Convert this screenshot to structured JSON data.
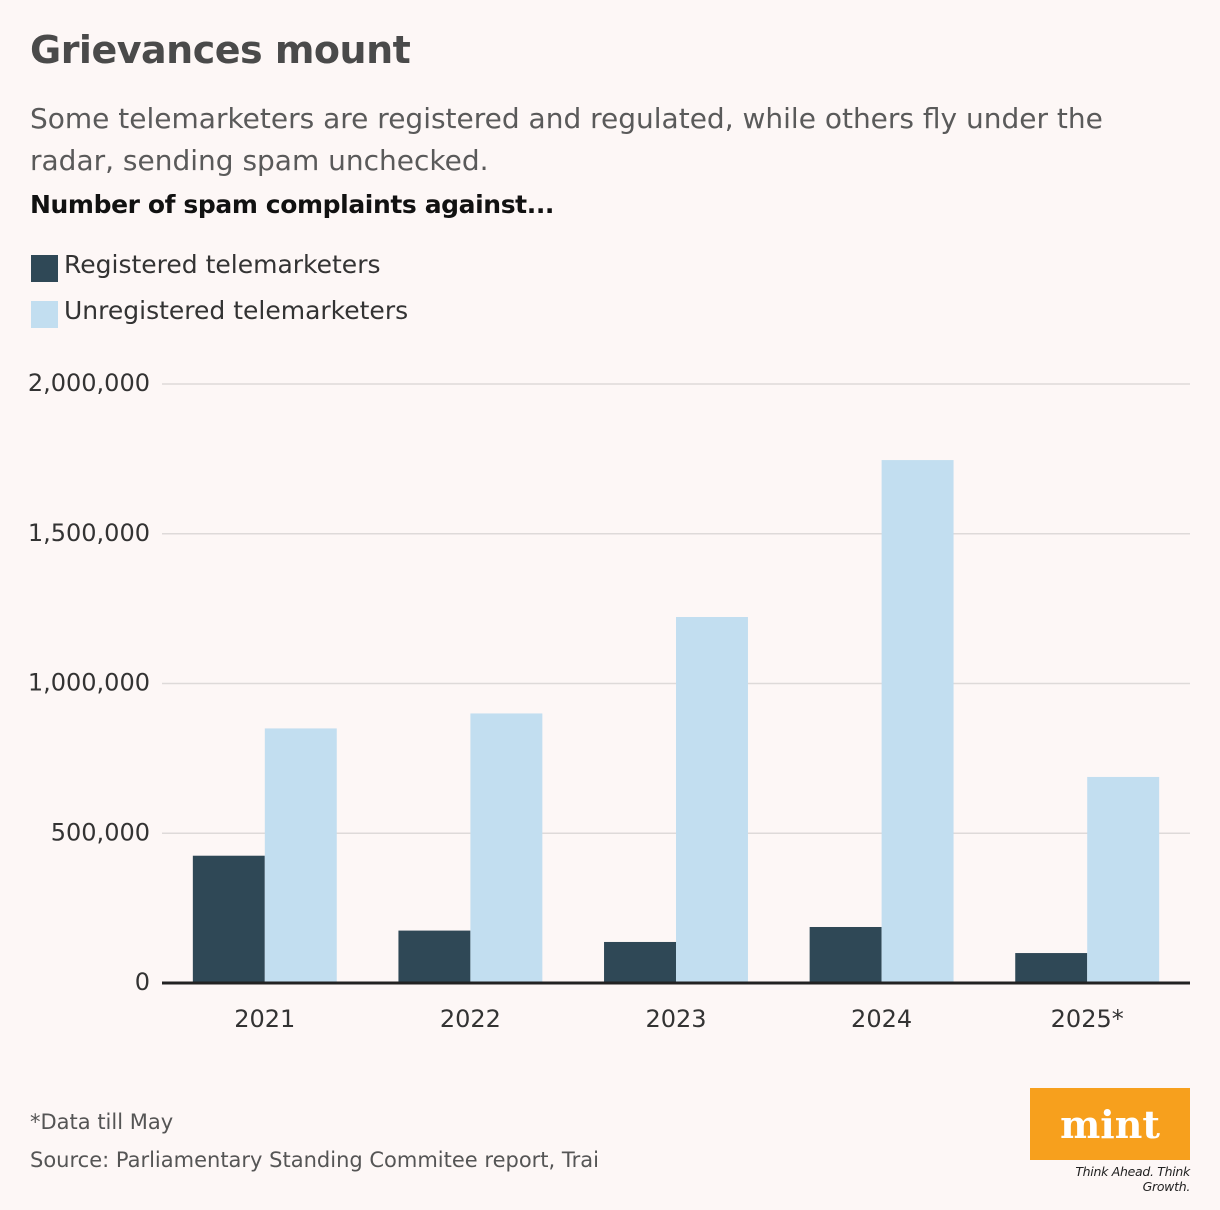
{
  "chart_data": {
    "type": "bar",
    "title": "Grievances mount",
    "subtitle": "Some telemarketers are registered and regulated, while others fly under the radar, sending spam unchecked.",
    "ylabel": "Number of spam complaints against...",
    "categories": [
      "2021",
      "2022",
      "2023",
      "2024",
      "2025*"
    ],
    "series": [
      {
        "name": "Registered telemarketers",
        "color": "#2f4856",
        "values": [
          425000,
          175000,
          137000,
          187000,
          100000
        ]
      },
      {
        "name": "Unregistered telemarketers",
        "color": "#c2def0",
        "values": [
          850000,
          900000,
          1222000,
          1746000,
          688000
        ]
      }
    ],
    "ylim": [
      0,
      2000000
    ],
    "yticks": [
      0,
      {
        "value": 500000,
        "label": "500,000"
      },
      {
        "value": 1000000,
        "label": "1,000,000"
      },
      {
        "value": 1500000,
        "label": "1,500,000"
      },
      {
        "value": 2000000,
        "label": "2,000,000"
      }
    ],
    "grid": true,
    "notes": [
      "*Data till May",
      "Source: Parliamentary Standing Commitee report, Trai"
    ]
  },
  "branding": {
    "logo": "mint",
    "tagline": "Think Ahead. Think Growth."
  }
}
